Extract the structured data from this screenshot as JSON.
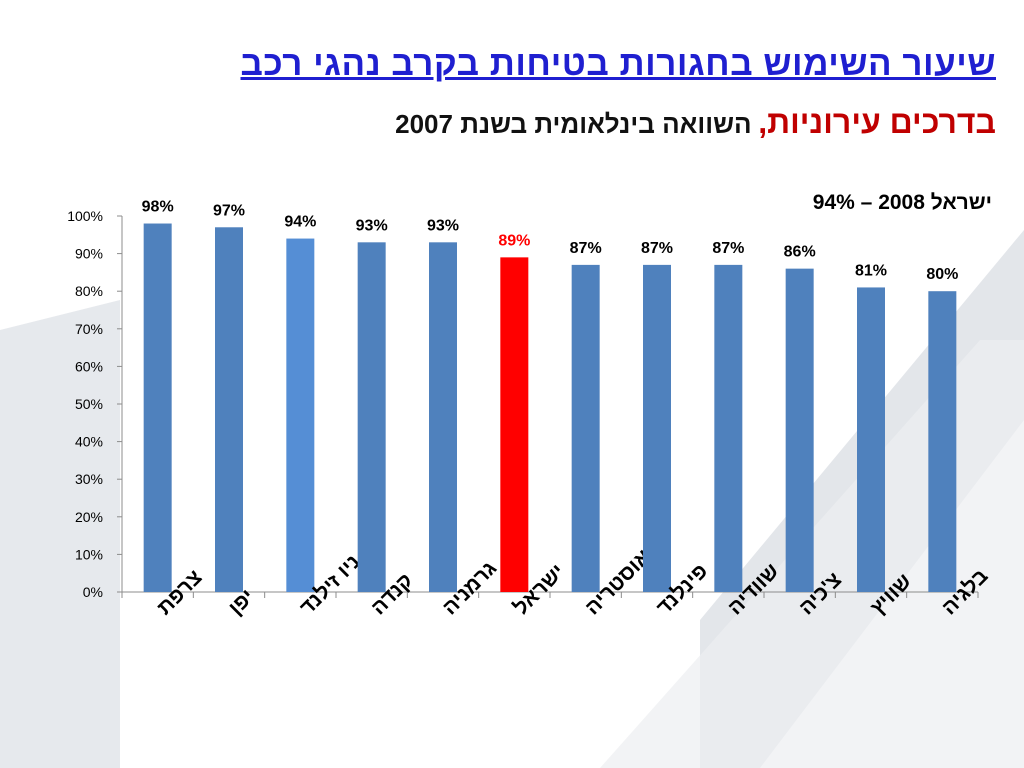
{
  "slide": {
    "title": "שיעור השימוש בחגורות בטיחות בקרב נהגי רכב",
    "subtitle_red": "בדרכים עירוניות,",
    "subtitle_black": "השוואה בינלאומית בשנת 2007",
    "annotation": "ישראל 2008 – 94%"
  },
  "colors": {
    "bar": "#4f81bd",
    "highlight_light": "#558ed5",
    "highlight_red": "#ff0000",
    "title_blue": "#1f1fd0",
    "subtitle_red": "#c00000",
    "background_shape": "#e3e6ea"
  },
  "chart_data": {
    "type": "bar",
    "categories": [
      "צרפת",
      "יפן",
      "ניו זילנד",
      "קנדה",
      "גרמניה",
      "ישראל",
      "אוסטריה",
      "פינלנד",
      "שוודיה",
      "צ'כיה",
      "שוויץ",
      "בלגיה"
    ],
    "values": [
      98,
      97,
      94,
      93,
      93,
      89,
      87,
      87,
      87,
      86,
      81,
      80
    ],
    "data_labels": [
      "98%",
      "97%",
      "94%",
      "93%",
      "93%",
      "89%",
      "87%",
      "87%",
      "87%",
      "86%",
      "81%",
      "80%"
    ],
    "highlight": {
      "ניו זילנד": "light",
      "ישראל": "red"
    },
    "yticks": [
      "0%",
      "10%",
      "20%",
      "30%",
      "40%",
      "50%",
      "60%",
      "70%",
      "80%",
      "90%",
      "100%"
    ],
    "ylim": [
      0,
      100
    ],
    "grid": false,
    "legend": "none"
  }
}
